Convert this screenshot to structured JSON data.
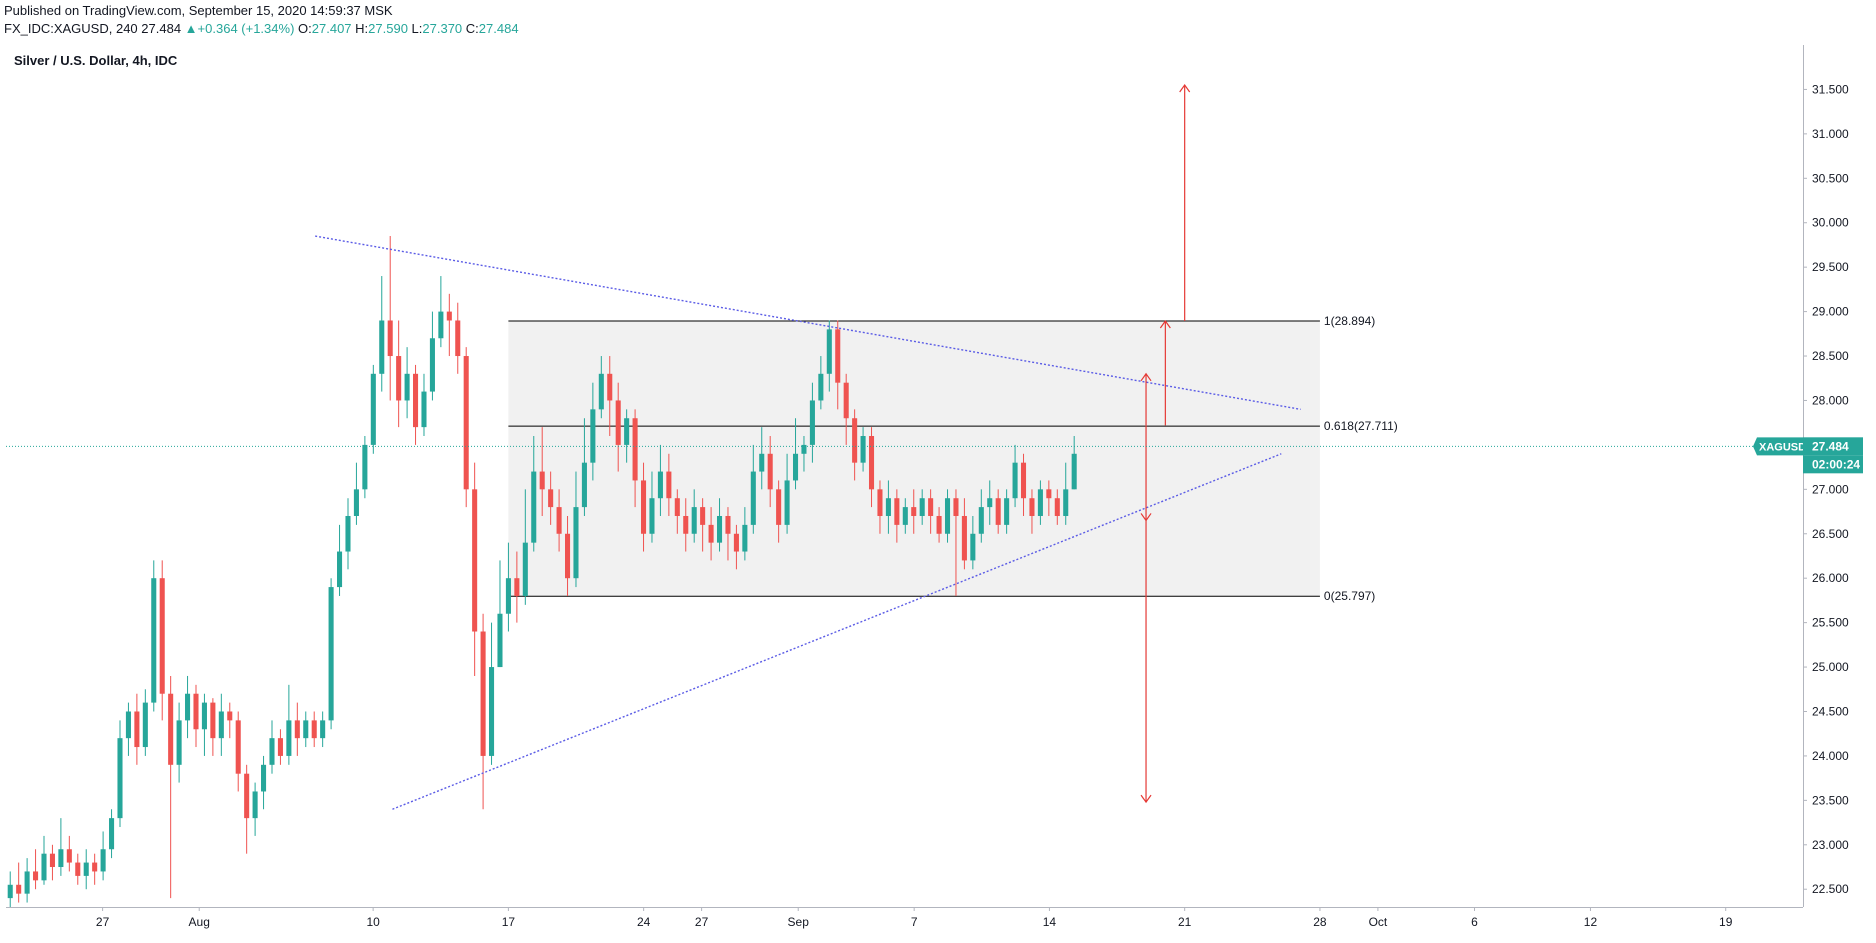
{
  "header": {
    "published": "Published on TradingView.com, September 15, 2020 14:59:37 MSK",
    "symbol": "FX_IDC:XAGUSD, 240",
    "last": "27.484",
    "change_arrow": "▲",
    "change": "+0.364 (+1.34%)",
    "o_label": "O:",
    "o_value": "27.407",
    "h_label": "H:",
    "h_value": "27.590",
    "l_label": "L:",
    "l_value": "27.370",
    "c_label": "C:",
    "c_value": "27.484"
  },
  "legend": {
    "title": "Silver / U.S. Dollar, 4h, IDC"
  },
  "colors": {
    "up": "#26a69a",
    "down": "#ef5350",
    "trendline": "#5b5ce6",
    "arrow": "#e53935",
    "box_fill": "#f1f1f1",
    "fib_line": "#000000",
    "price_tag": "#26a69a",
    "axis_text": "#131722"
  },
  "chart_data": {
    "type": "candlestick",
    "title": "Silver / U.S. Dollar, 4h, IDC",
    "symbol": "FX_IDC:XAGUSD",
    "interval": "240",
    "x_start": "2020-07-22",
    "x_end": "2020-10-23",
    "y_range": [
      22.3,
      32.0
    ],
    "y_ticks": [
      "22.500",
      "23.000",
      "23.500",
      "24.000",
      "24.500",
      "25.000",
      "25.500",
      "26.000",
      "26.500",
      "27.000",
      "27.500",
      "28.000",
      "28.500",
      "29.000",
      "29.500",
      "30.000",
      "30.500",
      "31.000",
      "31.500"
    ],
    "x_ticks": [
      {
        "label": "27",
        "date": "2020-07-27"
      },
      {
        "label": "Aug",
        "date": "2020-08-01"
      },
      {
        "label": "10",
        "date": "2020-08-10"
      },
      {
        "label": "17",
        "date": "2020-08-17"
      },
      {
        "label": "24",
        "date": "2020-08-24"
      },
      {
        "label": "27",
        "date": "2020-08-27"
      },
      {
        "label": "Sep",
        "date": "2020-09-01"
      },
      {
        "label": "7",
        "date": "2020-09-07"
      },
      {
        "label": "14",
        "date": "2020-09-14"
      },
      {
        "label": "21",
        "date": "2020-09-21"
      },
      {
        "label": "28",
        "date": "2020-09-28"
      },
      {
        "label": "Oct",
        "date": "2020-10-01"
      },
      {
        "label": "6",
        "date": "2020-10-06"
      },
      {
        "label": "12",
        "date": "2020-10-12"
      },
      {
        "label": "19",
        "date": "2020-10-19"
      }
    ],
    "last_price": {
      "label": "XAGUSD",
      "value": "27.484",
      "countdown": "02:00:24"
    },
    "fib_box": {
      "x_start": "2020-08-17",
      "x_end": "2020-09-28",
      "levels": [
        {
          "label": "1(28.894)",
          "value": 28.894
        },
        {
          "label": "0.618(27.711)",
          "value": 27.711
        },
        {
          "label": "0(25.797)",
          "value": 25.797
        }
      ]
    },
    "trendlines": [
      {
        "name": "descending",
        "from": {
          "date": "2020-08-07",
          "price": 29.85
        },
        "to": {
          "date": "2020-09-27",
          "price": 27.9
        }
      },
      {
        "name": "ascending",
        "from": {
          "date": "2020-08-11",
          "price": 23.4
        },
        "to": {
          "date": "2020-09-26",
          "price": 27.4
        }
      }
    ],
    "arrows": [
      {
        "date": "2020-09-19",
        "from": 27.72,
        "to": 28.3
      },
      {
        "date": "2020-09-19",
        "from": 27.72,
        "to": 26.65
      },
      {
        "date": "2020-09-20",
        "from": 27.72,
        "to": 28.894
      },
      {
        "date": "2020-09-21",
        "from": 28.894,
        "to": 31.55
      },
      {
        "date": "2020-09-19",
        "from": 26.65,
        "to": 23.48
      }
    ],
    "candles_open": 22.4,
    "candles": [
      [
        22.4,
        22.55,
        22.7,
        22.3
      ],
      [
        22.55,
        22.45,
        22.8,
        22.35
      ],
      [
        22.45,
        22.7,
        22.85,
        22.35
      ],
      [
        22.7,
        22.6,
        22.95,
        22.5
      ],
      [
        22.6,
        22.9,
        23.1,
        22.55
      ],
      [
        22.9,
        22.75,
        23.0,
        22.6
      ],
      [
        22.75,
        22.95,
        23.3,
        22.65
      ],
      [
        22.95,
        22.8,
        23.1,
        22.7
      ],
      [
        22.8,
        22.65,
        22.9,
        22.55
      ],
      [
        22.65,
        22.8,
        22.95,
        22.5
      ],
      [
        22.8,
        22.7,
        22.9,
        22.55
      ],
      [
        22.7,
        22.95,
        23.15,
        22.6
      ],
      [
        22.95,
        23.3,
        23.4,
        22.85
      ],
      [
        23.3,
        24.2,
        24.4,
        23.2
      ],
      [
        24.2,
        24.5,
        24.6,
        24.0
      ],
      [
        24.5,
        24.1,
        24.7,
        23.9
      ],
      [
        24.1,
        24.6,
        24.75,
        24.0
      ],
      [
        24.6,
        26.0,
        26.2,
        24.5
      ],
      [
        26.0,
        24.7,
        26.2,
        24.4
      ],
      [
        24.7,
        23.9,
        24.9,
        22.4
      ],
      [
        23.9,
        24.4,
        24.6,
        23.7
      ],
      [
        24.4,
        24.7,
        24.9,
        24.2
      ],
      [
        24.7,
        24.3,
        24.8,
        24.1
      ],
      [
        24.3,
        24.6,
        24.7,
        24.0
      ],
      [
        24.6,
        24.2,
        24.65,
        24.0
      ],
      [
        24.2,
        24.5,
        24.7,
        24.0
      ],
      [
        24.5,
        24.4,
        24.6,
        24.2
      ],
      [
        24.4,
        23.8,
        24.5,
        23.6
      ],
      [
        23.8,
        23.3,
        23.9,
        22.9
      ],
      [
        23.3,
        23.6,
        23.7,
        23.1
      ],
      [
        23.6,
        23.9,
        24.0,
        23.4
      ],
      [
        23.9,
        24.2,
        24.4,
        23.8
      ],
      [
        24.2,
        24.0,
        24.3,
        23.9
      ],
      [
        24.0,
        24.4,
        24.8,
        23.9
      ],
      [
        24.4,
        24.2,
        24.6,
        24.0
      ],
      [
        24.2,
        24.4,
        24.5,
        24.1
      ],
      [
        24.4,
        24.2,
        24.5,
        24.1
      ],
      [
        24.2,
        24.4,
        24.5,
        24.1
      ],
      [
        24.4,
        25.9,
        26.0,
        24.3
      ],
      [
        25.9,
        26.3,
        26.6,
        25.8
      ],
      [
        26.3,
        26.7,
        26.9,
        26.1
      ],
      [
        26.7,
        27.0,
        27.3,
        26.6
      ],
      [
        27.0,
        27.5,
        27.6,
        26.9
      ],
      [
        27.5,
        28.3,
        28.4,
        27.4
      ],
      [
        28.3,
        28.9,
        29.4,
        28.1
      ],
      [
        28.9,
        28.5,
        29.85,
        28.0
      ],
      [
        28.5,
        28.0,
        28.9,
        27.7
      ],
      [
        28.0,
        28.3,
        28.6,
        27.8
      ],
      [
        28.3,
        27.7,
        28.4,
        27.5
      ],
      [
        27.7,
        28.1,
        28.3,
        27.6
      ],
      [
        28.1,
        28.7,
        29.0,
        28.0
      ],
      [
        28.7,
        29.0,
        29.4,
        28.6
      ],
      [
        29.0,
        28.9,
        29.2,
        28.5
      ],
      [
        28.9,
        28.5,
        29.1,
        28.3
      ],
      [
        28.5,
        27.0,
        28.6,
        26.8
      ],
      [
        27.0,
        25.4,
        27.3,
        24.9
      ],
      [
        25.4,
        24.0,
        25.6,
        23.4
      ],
      [
        24.0,
        25.0,
        25.5,
        23.9
      ],
      [
        25.0,
        25.6,
        26.2,
        25.0
      ],
      [
        25.6,
        26.0,
        26.4,
        25.4
      ],
      [
        26.0,
        25.8,
        26.3,
        25.5
      ],
      [
        25.8,
        26.4,
        27.0,
        25.7
      ],
      [
        26.4,
        27.2,
        27.6,
        26.3
      ],
      [
        27.2,
        27.0,
        27.7,
        26.7
      ],
      [
        27.0,
        26.8,
        27.2,
        26.6
      ],
      [
        26.8,
        26.5,
        27.0,
        26.3
      ],
      [
        26.5,
        26.0,
        26.7,
        25.8
      ],
      [
        26.0,
        26.8,
        27.2,
        25.9
      ],
      [
        26.8,
        27.3,
        27.8,
        26.7
      ],
      [
        27.3,
        27.9,
        28.2,
        27.1
      ],
      [
        27.9,
        28.3,
        28.5,
        27.8
      ],
      [
        28.3,
        28.0,
        28.5,
        27.6
      ],
      [
        28.0,
        27.5,
        28.2,
        27.2
      ],
      [
        27.5,
        27.8,
        27.9,
        27.3
      ],
      [
        27.8,
        27.1,
        27.9,
        26.8
      ],
      [
        27.1,
        26.5,
        27.3,
        26.3
      ],
      [
        26.5,
        26.9,
        27.2,
        26.4
      ],
      [
        26.9,
        27.2,
        27.5,
        26.7
      ],
      [
        27.2,
        26.9,
        27.4,
        26.7
      ],
      [
        26.9,
        26.7,
        27.0,
        26.5
      ],
      [
        26.7,
        26.5,
        26.9,
        26.3
      ],
      [
        26.5,
        26.8,
        27.0,
        26.4
      ],
      [
        26.8,
        26.6,
        26.9,
        26.3
      ],
      [
        26.6,
        26.4,
        26.8,
        26.2
      ],
      [
        26.4,
        26.7,
        26.9,
        26.3
      ],
      [
        26.7,
        26.5,
        26.8,
        26.2
      ],
      [
        26.5,
        26.3,
        26.6,
        26.1
      ],
      [
        26.3,
        26.6,
        26.8,
        26.2
      ],
      [
        26.6,
        27.2,
        27.5,
        26.5
      ],
      [
        27.2,
        27.4,
        27.7,
        27.0
      ],
      [
        27.4,
        27.0,
        27.6,
        26.8
      ],
      [
        27.0,
        26.6,
        27.1,
        26.4
      ],
      [
        26.6,
        27.1,
        27.4,
        26.5
      ],
      [
        27.1,
        27.4,
        27.8,
        27.0
      ],
      [
        27.4,
        27.5,
        27.6,
        27.2
      ],
      [
        27.5,
        28.0,
        28.2,
        27.3
      ],
      [
        28.0,
        28.3,
        28.5,
        27.9
      ],
      [
        28.3,
        28.8,
        28.9,
        28.1
      ],
      [
        28.8,
        28.2,
        28.9,
        27.9
      ],
      [
        28.2,
        27.8,
        28.3,
        27.5
      ],
      [
        27.8,
        27.3,
        27.9,
        27.1
      ],
      [
        27.3,
        27.6,
        27.7,
        27.2
      ],
      [
        27.6,
        27.0,
        27.7,
        26.8
      ],
      [
        27.0,
        26.7,
        27.1,
        26.5
      ],
      [
        26.7,
        26.9,
        27.1,
        26.5
      ],
      [
        26.9,
        26.6,
        27.0,
        26.4
      ],
      [
        26.6,
        26.8,
        26.9,
        26.5
      ],
      [
        26.8,
        26.7,
        27.0,
        26.5
      ],
      [
        26.7,
        26.9,
        27.0,
        26.6
      ],
      [
        26.9,
        26.7,
        27.0,
        26.5
      ],
      [
        26.7,
        26.5,
        26.8,
        26.4
      ],
      [
        26.5,
        26.9,
        27.0,
        26.4
      ],
      [
        26.9,
        26.7,
        27.0,
        25.8
      ],
      [
        26.7,
        26.2,
        26.9,
        26.1
      ],
      [
        26.2,
        26.5,
        26.7,
        26.1
      ],
      [
        26.5,
        26.8,
        27.0,
        26.4
      ],
      [
        26.8,
        26.9,
        27.1,
        26.6
      ],
      [
        26.9,
        26.6,
        27.0,
        26.5
      ],
      [
        26.6,
        26.9,
        27.0,
        26.5
      ],
      [
        26.9,
        27.3,
        27.5,
        26.8
      ],
      [
        27.3,
        26.9,
        27.4,
        26.7
      ],
      [
        26.9,
        26.7,
        27.0,
        26.5
      ],
      [
        26.7,
        27.0,
        27.1,
        26.6
      ],
      [
        27.0,
        26.9,
        27.1,
        26.7
      ],
      [
        26.9,
        26.7,
        27.0,
        26.6
      ],
      [
        26.7,
        27.0,
        27.3,
        26.6
      ],
      [
        27.0,
        27.4,
        27.6,
        27.0
      ]
    ]
  }
}
